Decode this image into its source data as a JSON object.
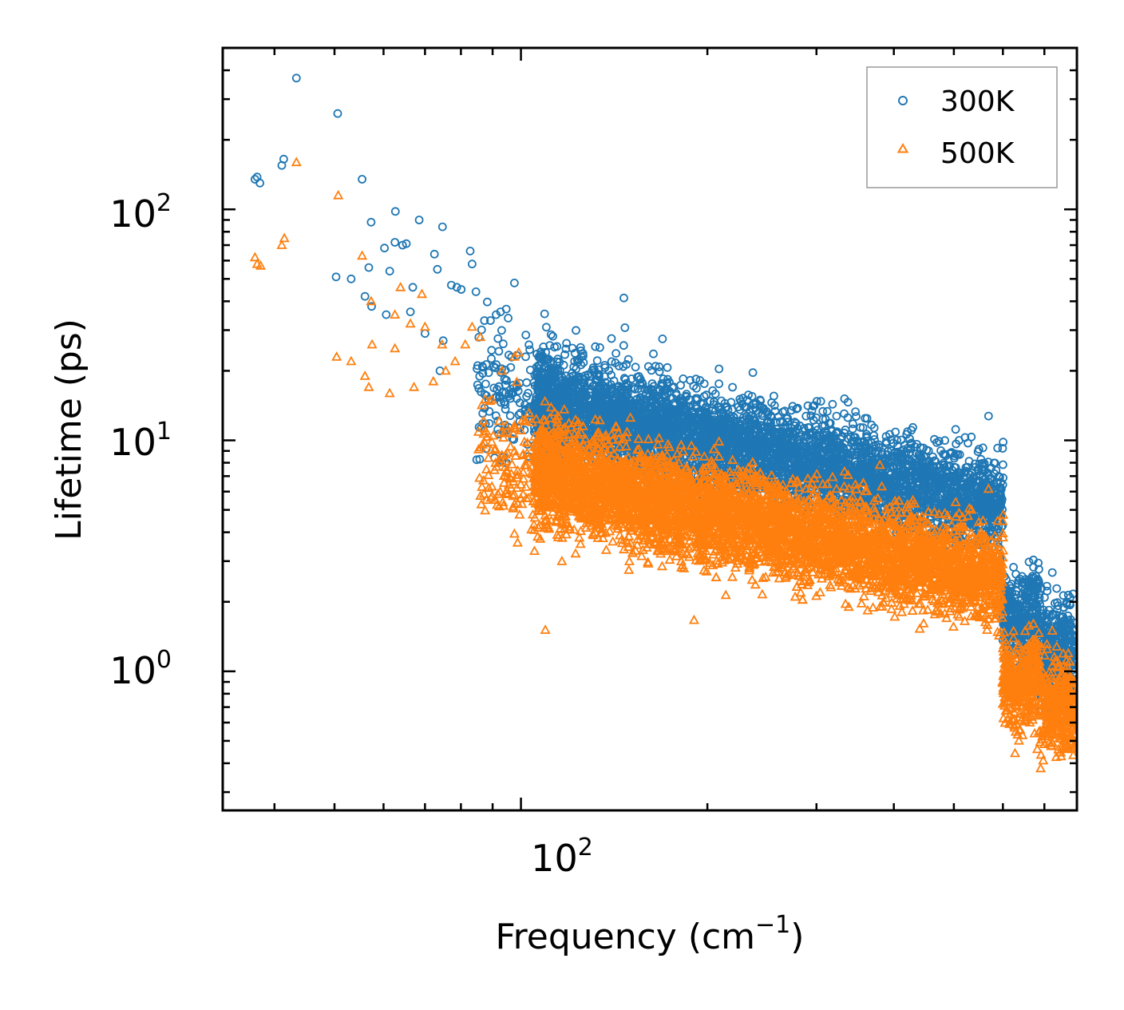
{
  "chart_data": {
    "type": "scatter",
    "xlabel": "Frequency (cm",
    "xlabel_sup": "−1",
    "xlabel_close": ")",
    "ylabel": "Lifetime (ps)",
    "xscale": "log",
    "yscale": "log",
    "xlim": [
      33,
      790
    ],
    "ylim": [
      0.25,
      500
    ],
    "x_tick_labels": [
      {
        "value": 100,
        "base": "10",
        "exp": "2"
      }
    ],
    "y_tick_labels": [
      {
        "value": 1,
        "base": "10",
        "exp": "0"
      },
      {
        "value": 10,
        "base": "10",
        "exp": "1"
      },
      {
        "value": 100,
        "base": "10",
        "exp": "2"
      }
    ],
    "legend_position": "top-right",
    "series": [
      {
        "name": "300K",
        "marker": "circle",
        "color": "#1f77b4",
        "points": [
          [
            37.2,
            135
          ],
          [
            37.5,
            138
          ],
          [
            37.9,
            130
          ],
          [
            41.1,
            155
          ],
          [
            41.4,
            165
          ],
          [
            43.4,
            370
          ],
          [
            50.6,
            260
          ],
          [
            50.3,
            51
          ],
          [
            53.2,
            50
          ],
          [
            55.4,
            135
          ],
          [
            56.0,
            42
          ],
          [
            57.3,
            88
          ],
          [
            57.4,
            38
          ],
          [
            56.8,
            56
          ],
          [
            60.2,
            68
          ],
          [
            60.6,
            35
          ],
          [
            61.4,
            54
          ],
          [
            62.7,
            98
          ],
          [
            62.6,
            72
          ],
          [
            64.4,
            70
          ],
          [
            65.3,
            71
          ],
          [
            66.3,
            36
          ],
          [
            66.9,
            46
          ],
          [
            68.5,
            90
          ],
          [
            70.0,
            29
          ],
          [
            72.5,
            64
          ],
          [
            73.3,
            55
          ],
          [
            74.7,
            84
          ],
          [
            74.9,
            27
          ],
          [
            74.0,
            20
          ],
          [
            77.2,
            47
          ],
          [
            78.8,
            46
          ],
          [
            80.1,
            45
          ],
          [
            82.8,
            66
          ],
          [
            83.4,
            58
          ],
          [
            84.6,
            44
          ],
          [
            87.3,
            33
          ],
          [
            89.3,
            33
          ],
          [
            91.2,
            35
          ],
          [
            92.7,
            36
          ],
          [
            94.7,
            37
          ],
          [
            97.6,
            48
          ]
        ]
      },
      {
        "name": "500K",
        "marker": "triangle",
        "color": "#ff7f0e",
        "points": [
          [
            37.2,
            62
          ],
          [
            37.5,
            58
          ],
          [
            38.0,
            57
          ],
          [
            41.1,
            70
          ],
          [
            41.5,
            75
          ],
          [
            43.4,
            160
          ],
          [
            50.7,
            115
          ],
          [
            50.4,
            23
          ],
          [
            53.2,
            22
          ],
          [
            55.4,
            63
          ],
          [
            56.0,
            19
          ],
          [
            56.8,
            17
          ],
          [
            57.3,
            40
          ],
          [
            57.5,
            26
          ],
          [
            61.4,
            16
          ],
          [
            62.6,
            25
          ],
          [
            62.6,
            35
          ],
          [
            63.9,
            46
          ],
          [
            66.3,
            32
          ],
          [
            67.2,
            17
          ],
          [
            69.2,
            43
          ],
          [
            70.0,
            31
          ],
          [
            72.2,
            18
          ],
          [
            74.6,
            26
          ],
          [
            75.6,
            20
          ],
          [
            78.3,
            22
          ],
          [
            81.3,
            26
          ],
          [
            83.4,
            31
          ],
          [
            86.0,
            28
          ],
          [
            89.8,
            15
          ],
          [
            93.2,
            20
          ],
          [
            97.6,
            23
          ],
          [
            99.2,
            24
          ]
        ]
      }
    ]
  }
}
